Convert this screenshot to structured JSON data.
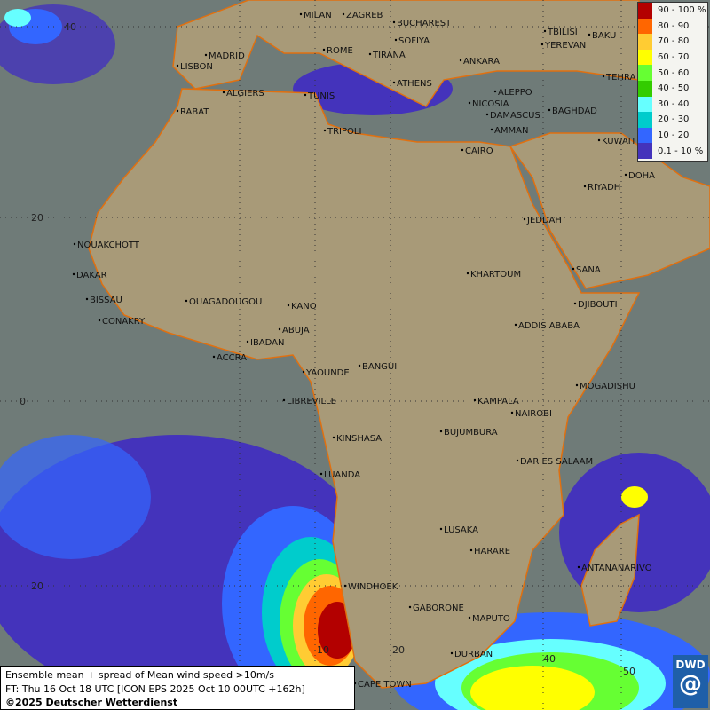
{
  "map": {
    "colors": {
      "ocean": "#6f7b78",
      "land": "#a89a78",
      "border": "#222222",
      "coast": "#e07010"
    },
    "lat_labels": [
      "40",
      "20",
      "0",
      "20"
    ],
    "lon_labels": [
      "10",
      "20",
      "40",
      "50"
    ],
    "cities": [
      "MILAN",
      "ZAGREB",
      "BUCHAREST",
      "SOFIYA",
      "MADRID",
      "ROME",
      "TIRANA",
      "ANKARA",
      "TBILISI",
      "YEREVAN",
      "BAKU",
      "TEHRA",
      "LISBON",
      "ALGIERS",
      "TUNIS",
      "ATHENS",
      "ALEPPO",
      "NICOSIA",
      "BAGHDAD",
      "RABAT",
      "TRIPOLI",
      "DAMASCUS",
      "AMMAN",
      "KUWAIT",
      "CAIRO",
      "DOHA",
      "RIYADH",
      "NOUAKCHOTT",
      "JEDDAH",
      "DAKAR",
      "KHARTOUM",
      "SANA",
      "BISSAU",
      "OUAGADOUGOU",
      "KANO",
      "DJIBOUTI",
      "CONAKRY",
      "ABUJA",
      "ADDIS ABABA",
      "IBADAN",
      "ACCRA",
      "YAOUNDE",
      "BANGUI",
      "MOGADISHU",
      "LIBREVILLE",
      "KAMPALA",
      "NAIROBI",
      "KINSHASA",
      "BUJUMBURA",
      "DAR ES SALAAM",
      "LUANDA",
      "LUSAKA",
      "HARARE",
      "ANTANANARIVO",
      "WINDHOEK",
      "GABORONE",
      "MAPUTO",
      "DURBAN",
      "CAPE TOWN"
    ]
  },
  "legend": [
    {
      "label": "90 - 100 %",
      "color": "#b30000"
    },
    {
      "label": "80 - 90",
      "color": "#ff6600"
    },
    {
      "label": "70 - 80",
      "color": "#ffcc33"
    },
    {
      "label": "60 - 70",
      "color": "#ffff00"
    },
    {
      "label": "50 - 60",
      "color": "#66ff33"
    },
    {
      "label": "40 - 50",
      "color": "#33cc00"
    },
    {
      "label": "30 - 40",
      "color": "#66ffff"
    },
    {
      "label": "20 - 30",
      "color": "#00cccc"
    },
    {
      "label": "10 - 20",
      "color": "#3366ff"
    },
    {
      "label": "0.1 - 10 %",
      "color": "#4433bb"
    }
  ],
  "caption": {
    "line1": "Ensemble mean + spread of Mean wind speed >10m/s",
    "line2": "FT: Thu 16 Oct 18 UTC [ICON EPS 2025 Oct 10 00UTC +162h]",
    "line3": "©2025 Deutscher Wetterdienst"
  },
  "logo": {
    "text": "DWD"
  }
}
